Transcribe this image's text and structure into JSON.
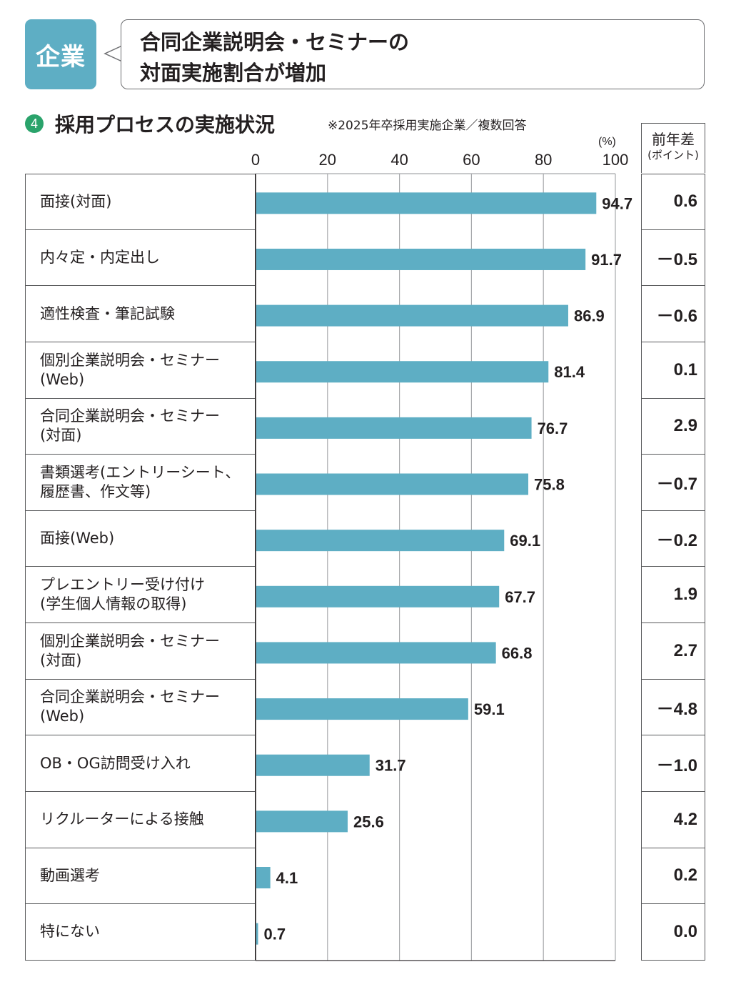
{
  "header": {
    "badge": "企業",
    "headline_lines": [
      "合同企業説明会・セミナーの",
      "対面実施割合が増加"
    ]
  },
  "section": {
    "number": "4",
    "title": "採用プロセスの実施状況",
    "note": "※2025年卒採用実施企業／複数回答"
  },
  "diff_column": {
    "header_line1": "前年差",
    "header_line2": "(ポイント)"
  },
  "colors": {
    "bar": "#5eaec4",
    "badge": "#5eaec4",
    "section_number": "#2aa36b"
  },
  "chart_data": {
    "type": "bar",
    "orientation": "horizontal",
    "title": "採用プロセスの実施状況",
    "subtitle": "※2025年卒採用実施企業／複数回答",
    "xlabel": "(%)",
    "ylabel": "",
    "xlim": [
      0,
      100
    ],
    "xticks": [
      0,
      20,
      40,
      60,
      80,
      100
    ],
    "grid": true,
    "categories": [
      "面接(対面)",
      "内々定・内定出し",
      "適性検査・筆記試験",
      "個別企業説明会・セミナー\n(Web)",
      "合同企業説明会・セミナー\n(対面)",
      "書類選考(エントリーシート、\n履歴書、作文等)",
      "面接(Web)",
      "プレエントリー受け付け\n(学生個人情報の取得)",
      "個別企業説明会・セミナー\n(対面)",
      "合同企業説明会・セミナー\n(Web)",
      "OB・OG訪問受け入れ",
      "リクルーターによる接触",
      "動画選考",
      "特にない"
    ],
    "values": [
      94.7,
      91.7,
      86.9,
      81.4,
      76.7,
      75.8,
      69.1,
      67.7,
      66.8,
      59.1,
      31.7,
      25.6,
      4.1,
      0.7
    ],
    "value_labels": [
      "94.7",
      "91.7",
      "86.9",
      "81.4",
      "76.7",
      "75.8",
      "69.1",
      "67.7",
      "66.8",
      "59.1",
      "31.7",
      "25.6",
      "4.1",
      "0.7"
    ],
    "year_over_year_diff": [
      "0.6",
      "－0.5",
      "－0.6",
      "0.1",
      "2.9",
      "－0.7",
      "－0.2",
      "1.9",
      "2.7",
      "－4.8",
      "－1.0",
      "4.2",
      "0.2",
      "0.0"
    ]
  }
}
